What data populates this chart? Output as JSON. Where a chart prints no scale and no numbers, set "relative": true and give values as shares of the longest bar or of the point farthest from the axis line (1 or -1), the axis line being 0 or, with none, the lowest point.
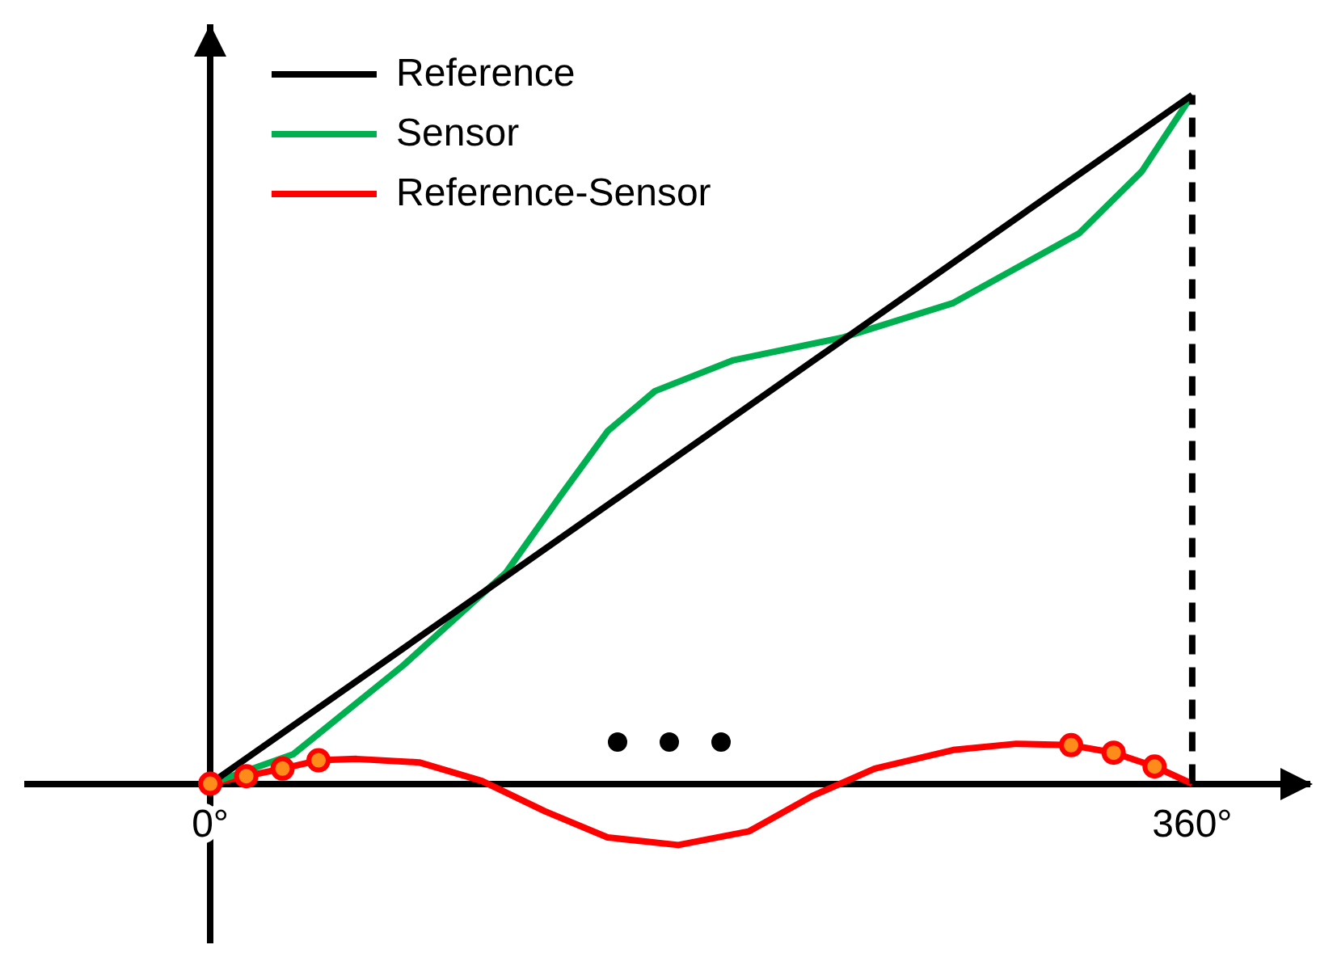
{
  "chart_data": {
    "type": "line",
    "relative": true,
    "xlim": [
      -67,
      403
    ],
    "xticks": [
      {
        "value": 0,
        "label": "0°"
      },
      {
        "value": 360,
        "label": "360°"
      }
    ],
    "legend": "top left",
    "grid": false,
    "marker": "none",
    "line_style": "solid",
    "series": [
      {
        "name": "Reference",
        "color": "#000000",
        "x": [
          0,
          360
        ],
        "values": [
          0,
          1
        ]
      },
      {
        "name": "Sensor",
        "color": "#00b050",
        "x": [
          0,
          30.5,
          70.8,
          108.3,
          128.4,
          145.7,
          163.0,
          191.8,
          232.1,
          272.4,
          318.5,
          341.5,
          360
        ],
        "values": [
          0,
          0.043,
          0.172,
          0.306,
          0.418,
          0.512,
          0.57,
          0.615,
          0.648,
          0.698,
          0.799,
          0.889,
          1
        ]
      },
      {
        "name": "Reference-Sensor",
        "color": "#ff0000",
        "x": [
          0,
          13.2,
          26.5,
          39.7,
          53.6,
          76.6,
          99.6,
          122.7,
          145.7,
          171.6,
          197.6,
          220.6,
          243.6,
          272.4,
          295.5,
          315.6,
          331.2,
          346.2,
          360
        ],
        "values": [
          0,
          0.011,
          0.022,
          0.034,
          0.036,
          0.031,
          0.004,
          -0.04,
          -0.078,
          -0.089,
          -0.069,
          -0.018,
          0.022,
          0.049,
          0.058,
          0.056,
          0.045,
          0.025,
          0
        ]
      },
      {
        "type": "scatter",
        "marker": "circle",
        "color": "#ff0000",
        "x": [
          0,
          13.2,
          26.5,
          39.7,
          315.6,
          331.2,
          346.2
        ],
        "values": [
          0,
          0.011,
          0.022,
          0.034,
          0.056,
          0.045,
          0.025
        ]
      }
    ],
    "ref_lines": [
      {
        "axis": "x",
        "value": 360,
        "line_style": "dashed",
        "color": "#000000"
      }
    ]
  }
}
